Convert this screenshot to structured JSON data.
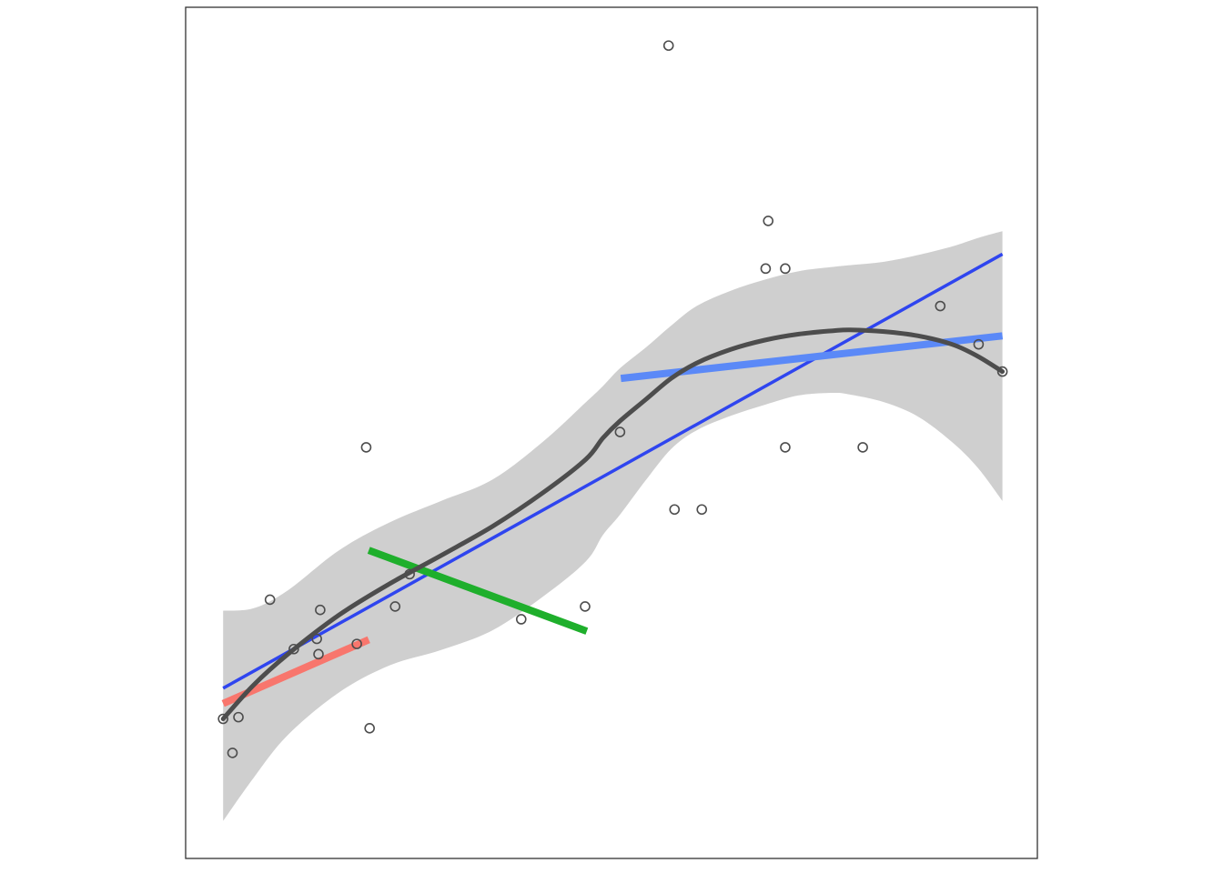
{
  "chart_data": {
    "type": "scatter",
    "title": "",
    "xlabel": "",
    "ylabel": "",
    "xlim": [
      0,
      100
    ],
    "ylim": [
      0,
      100
    ],
    "grid": false,
    "legend": "none",
    "axis_tick_labels": "none",
    "points": [
      {
        "x": 4.4,
        "y": 16.4
      },
      {
        "x": 6.2,
        "y": 16.6
      },
      {
        "x": 5.5,
        "y": 12.4
      },
      {
        "x": 9.9,
        "y": 30.4
      },
      {
        "x": 12.7,
        "y": 24.6
      },
      {
        "x": 15.4,
        "y": 25.8
      },
      {
        "x": 15.8,
        "y": 29.2
      },
      {
        "x": 15.6,
        "y": 24.0
      },
      {
        "x": 20.1,
        "y": 25.2
      },
      {
        "x": 21.2,
        "y": 48.3
      },
      {
        "x": 21.6,
        "y": 15.3
      },
      {
        "x": 24.6,
        "y": 29.6
      },
      {
        "x": 26.3,
        "y": 33.4
      },
      {
        "x": 39.4,
        "y": 28.1
      },
      {
        "x": 46.9,
        "y": 29.6
      },
      {
        "x": 51.0,
        "y": 50.1
      },
      {
        "x": 56.7,
        "y": 95.5
      },
      {
        "x": 57.4,
        "y": 41.0
      },
      {
        "x": 60.6,
        "y": 41.0
      },
      {
        "x": 68.1,
        "y": 69.3
      },
      {
        "x": 68.4,
        "y": 74.9
      },
      {
        "x": 70.4,
        "y": 69.3
      },
      {
        "x": 70.4,
        "y": 48.3
      },
      {
        "x": 79.5,
        "y": 48.3
      },
      {
        "x": 88.6,
        "y": 64.9
      },
      {
        "x": 93.1,
        "y": 60.4
      },
      {
        "x": 95.9,
        "y": 57.2
      }
    ],
    "overall_fit": {
      "x": [
        4.4,
        95.9
      ],
      "y": [
        20.0,
        71.0
      ]
    },
    "smooth": {
      "x": [
        4.4,
        8,
        12,
        18,
        24,
        30,
        36,
        42,
        47,
        49,
        51,
        54,
        57,
        60,
        64,
        68,
        72,
        76,
        78,
        82,
        86,
        90,
        93,
        95.9
      ],
      "y": [
        16.4,
        20.4,
        24.0,
        28.6,
        32.3,
        35.6,
        39.0,
        43.0,
        46.9,
        49.4,
        51.4,
        53.9,
        56.4,
        58.2,
        59.8,
        60.9,
        61.6,
        62.0,
        62.1,
        61.9,
        61.4,
        60.4,
        59.0,
        57.2
      ],
      "band_upper": [
        29.1,
        29.4,
        31.5,
        36.2,
        39.5,
        42.0,
        44.5,
        49.0,
        53.6,
        55.5,
        57.6,
        60.0,
        62.6,
        64.9,
        66.7,
        68.0,
        69.0,
        69.5,
        69.7,
        70.1,
        70.9,
        71.9,
        72.9,
        73.7
      ],
      "band_lower": [
        4.4,
        9.5,
        14.5,
        19.5,
        22.7,
        24.5,
        26.8,
        30.8,
        34.9,
        38.0,
        40.4,
        44.4,
        48.1,
        50.3,
        52.0,
        53.3,
        54.4,
        54.7,
        54.5,
        53.6,
        51.9,
        48.9,
        45.9,
        42.0
      ]
    },
    "segments": [
      {
        "color": "#f8766d",
        "x": [
          4.4,
          21.5
        ],
        "y": [
          18.2,
          25.7
        ]
      },
      {
        "color": "#1faf2c",
        "x": [
          21.5,
          47.1
        ],
        "y": [
          36.2,
          26.7
        ]
      },
      {
        "color": "#5b89f7",
        "x": [
          51.1,
          95.9
        ],
        "y": [
          56.4,
          61.4
        ]
      }
    ],
    "colors": {
      "overall_fit": "#2f45ef",
      "smooth": "#4d4d4d",
      "band": "#cfcfcf",
      "points": "#4d4d4d",
      "frame": "#333333"
    }
  }
}
